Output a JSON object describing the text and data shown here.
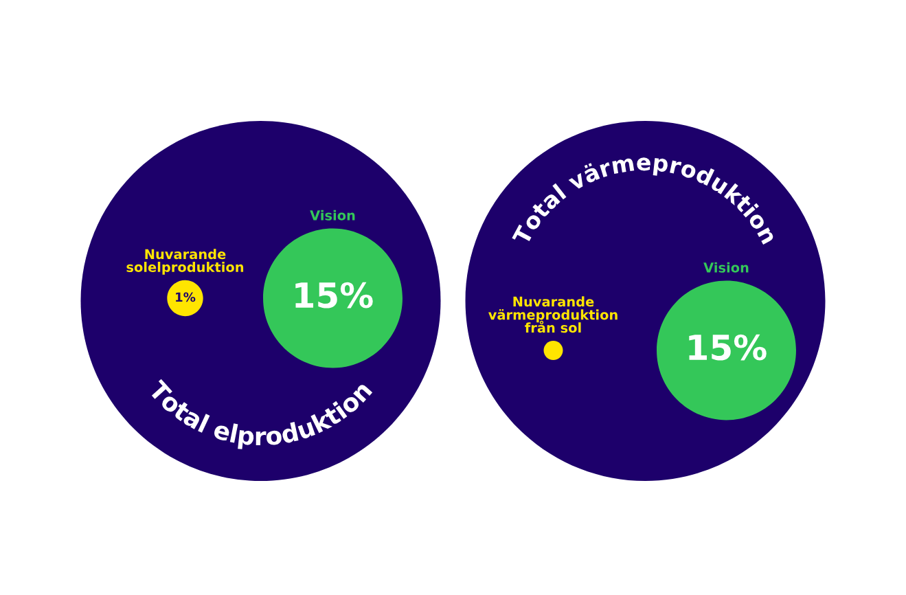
{
  "chart_data": [
    {
      "type": "other",
      "title": "Total elproduktion",
      "categories": [
        "Nuvarande\nsolelproduktion",
        "Vision"
      ],
      "values": [
        1,
        15
      ],
      "colors": [
        "#ffe500",
        "#34c759"
      ],
      "value_labels": [
        "1%",
        "15%"
      ]
    },
    {
      "type": "other",
      "title": "Total värmeproduktion",
      "categories": [
        "Nuvarande\nvärmeproduktion\nfrån sol",
        "Vision"
      ],
      "values": [
        null,
        15
      ],
      "colors": [
        "#ffe500",
        "#34c759"
      ],
      "value_labels": [
        null,
        "15%"
      ]
    }
  ]
}
